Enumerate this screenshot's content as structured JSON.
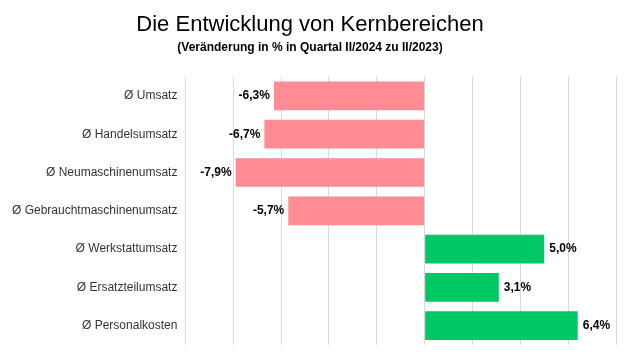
{
  "chart_data": {
    "type": "bar",
    "orientation": "horizontal",
    "title": "Die Entwicklung von Kernbereichen",
    "subtitle": "(Veränderung in % in Quartal II/2024 zu II/2023)",
    "categories": [
      "Ø Umsatz",
      "Ø Handelsumsatz",
      "Ø Neumaschinenumsatz",
      "Ø Gebrauchtmaschinenumsatz",
      "Ø Werkstattumsatz",
      "Ø Ersatzteilumsatz",
      "Ø Personalkosten"
    ],
    "values": [
      -6.3,
      -6.7,
      -7.9,
      -5.7,
      5.0,
      3.1,
      6.4
    ],
    "value_labels": [
      "-6,3%",
      "-6,7%",
      "-7,9%",
      "-5,7%",
      "5,0%",
      "3,1%",
      "6,4%"
    ],
    "colors": [
      "#ff8c94",
      "#ff8c94",
      "#ff8c94",
      "#ff8c94",
      "#00c864",
      "#00c864",
      "#00c864"
    ],
    "xlim": [
      -10,
      8
    ],
    "xticks": [
      -10,
      -8,
      -6,
      -4,
      -2,
      0,
      2,
      4,
      6,
      8
    ],
    "grid": true,
    "data_labels": true,
    "tick_labels": "y"
  }
}
